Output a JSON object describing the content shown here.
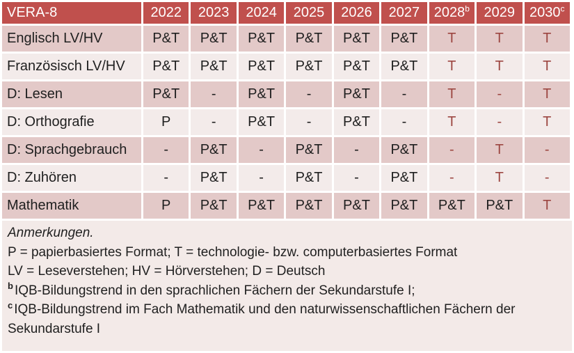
{
  "colors": {
    "header_bg": "#c0504d",
    "header_text": "#ffffff",
    "band_dark": "#e3c9c8",
    "band_light": "#f3ebea",
    "notes_bg": "#f3eae8",
    "accent_text": "#9c4641",
    "body_text": "#1f1f1f"
  },
  "table": {
    "header": {
      "label": "VERA-8",
      "years": [
        {
          "text": "2022",
          "sup": ""
        },
        {
          "text": "2023",
          "sup": ""
        },
        {
          "text": "2024",
          "sup": ""
        },
        {
          "text": "2025",
          "sup": ""
        },
        {
          "text": "2026",
          "sup": ""
        },
        {
          "text": "2027",
          "sup": ""
        },
        {
          "text": "2028",
          "sup": "b"
        },
        {
          "text": "2029",
          "sup": ""
        },
        {
          "text": "2030",
          "sup": "c"
        }
      ]
    },
    "rows": [
      {
        "label": "Englisch LV/HV",
        "cells": [
          {
            "text": "P&T",
            "red": false
          },
          {
            "text": "P&T",
            "red": false
          },
          {
            "text": "P&T",
            "red": false
          },
          {
            "text": "P&T",
            "red": false
          },
          {
            "text": "P&T",
            "red": false
          },
          {
            "text": "P&T",
            "red": false
          },
          {
            "text": "T",
            "red": true
          },
          {
            "text": "T",
            "red": true
          },
          {
            "text": "T",
            "red": true
          }
        ]
      },
      {
        "label": "Französisch LV/HV",
        "cells": [
          {
            "text": "P&T",
            "red": false
          },
          {
            "text": "P&T",
            "red": false
          },
          {
            "text": "P&T",
            "red": false
          },
          {
            "text": "P&T",
            "red": false
          },
          {
            "text": "P&T",
            "red": false
          },
          {
            "text": "P&T",
            "red": false
          },
          {
            "text": "T",
            "red": true
          },
          {
            "text": "T",
            "red": true
          },
          {
            "text": "T",
            "red": true
          }
        ]
      },
      {
        "label": "D: Lesen",
        "cells": [
          {
            "text": "P&T",
            "red": false
          },
          {
            "text": "-",
            "red": false
          },
          {
            "text": "P&T",
            "red": false
          },
          {
            "text": "-",
            "red": false
          },
          {
            "text": "P&T",
            "red": false
          },
          {
            "text": "-",
            "red": false
          },
          {
            "text": "T",
            "red": true
          },
          {
            "text": "-",
            "red": true
          },
          {
            "text": "T",
            "red": true
          }
        ]
      },
      {
        "label": "D: Orthografie",
        "cells": [
          {
            "text": "P",
            "red": false
          },
          {
            "text": "-",
            "red": false
          },
          {
            "text": "P&T",
            "red": false
          },
          {
            "text": "-",
            "red": false
          },
          {
            "text": "P&T",
            "red": false
          },
          {
            "text": "-",
            "red": false
          },
          {
            "text": "T",
            "red": true
          },
          {
            "text": "-",
            "red": true
          },
          {
            "text": "T",
            "red": true
          }
        ]
      },
      {
        "label": "D: Sprachgebrauch",
        "cells": [
          {
            "text": "-",
            "red": false
          },
          {
            "text": "P&T",
            "red": false
          },
          {
            "text": "-",
            "red": false
          },
          {
            "text": "P&T",
            "red": false
          },
          {
            "text": "-",
            "red": false
          },
          {
            "text": "P&T",
            "red": false
          },
          {
            "text": "-",
            "red": true
          },
          {
            "text": "T",
            "red": true
          },
          {
            "text": "-",
            "red": true
          }
        ]
      },
      {
        "label": "D: Zuhören",
        "cells": [
          {
            "text": "-",
            "red": false
          },
          {
            "text": "P&T",
            "red": false
          },
          {
            "text": "-",
            "red": false
          },
          {
            "text": "P&T",
            "red": false
          },
          {
            "text": "-",
            "red": false
          },
          {
            "text": "P&T",
            "red": false
          },
          {
            "text": "-",
            "red": true
          },
          {
            "text": "T",
            "red": true
          },
          {
            "text": "-",
            "red": true
          }
        ]
      },
      {
        "label": "Mathematik",
        "cells": [
          {
            "text": "P",
            "red": false
          },
          {
            "text": "P&T",
            "red": false
          },
          {
            "text": "P&T",
            "red": false
          },
          {
            "text": "P&T",
            "red": false
          },
          {
            "text": "P&T",
            "red": false
          },
          {
            "text": "P&T",
            "red": false
          },
          {
            "text": "P&T",
            "red": false
          },
          {
            "text": "P&T",
            "red": false
          },
          {
            "text": "T",
            "red": true
          }
        ]
      }
    ]
  },
  "notes": {
    "title": "Anmerkungen.",
    "lines": [
      {
        "sup": "",
        "text": "P = papierbasiertes Format; T = technologie- bzw. computerbasiertes Format"
      },
      {
        "sup": "",
        "text": "LV = Leseverstehen; HV = Hörverstehen; D = Deutsch"
      },
      {
        "sup": "b",
        "text": "IQB-Bildungstrend in den sprachlichen Fächern der Sekundarstufe I;"
      },
      {
        "sup": "c",
        "text": "IQB-Bildungstrend im Fach Mathematik und den naturwissenschaftlichen Fächern der Sekundarstufe I"
      }
    ]
  }
}
